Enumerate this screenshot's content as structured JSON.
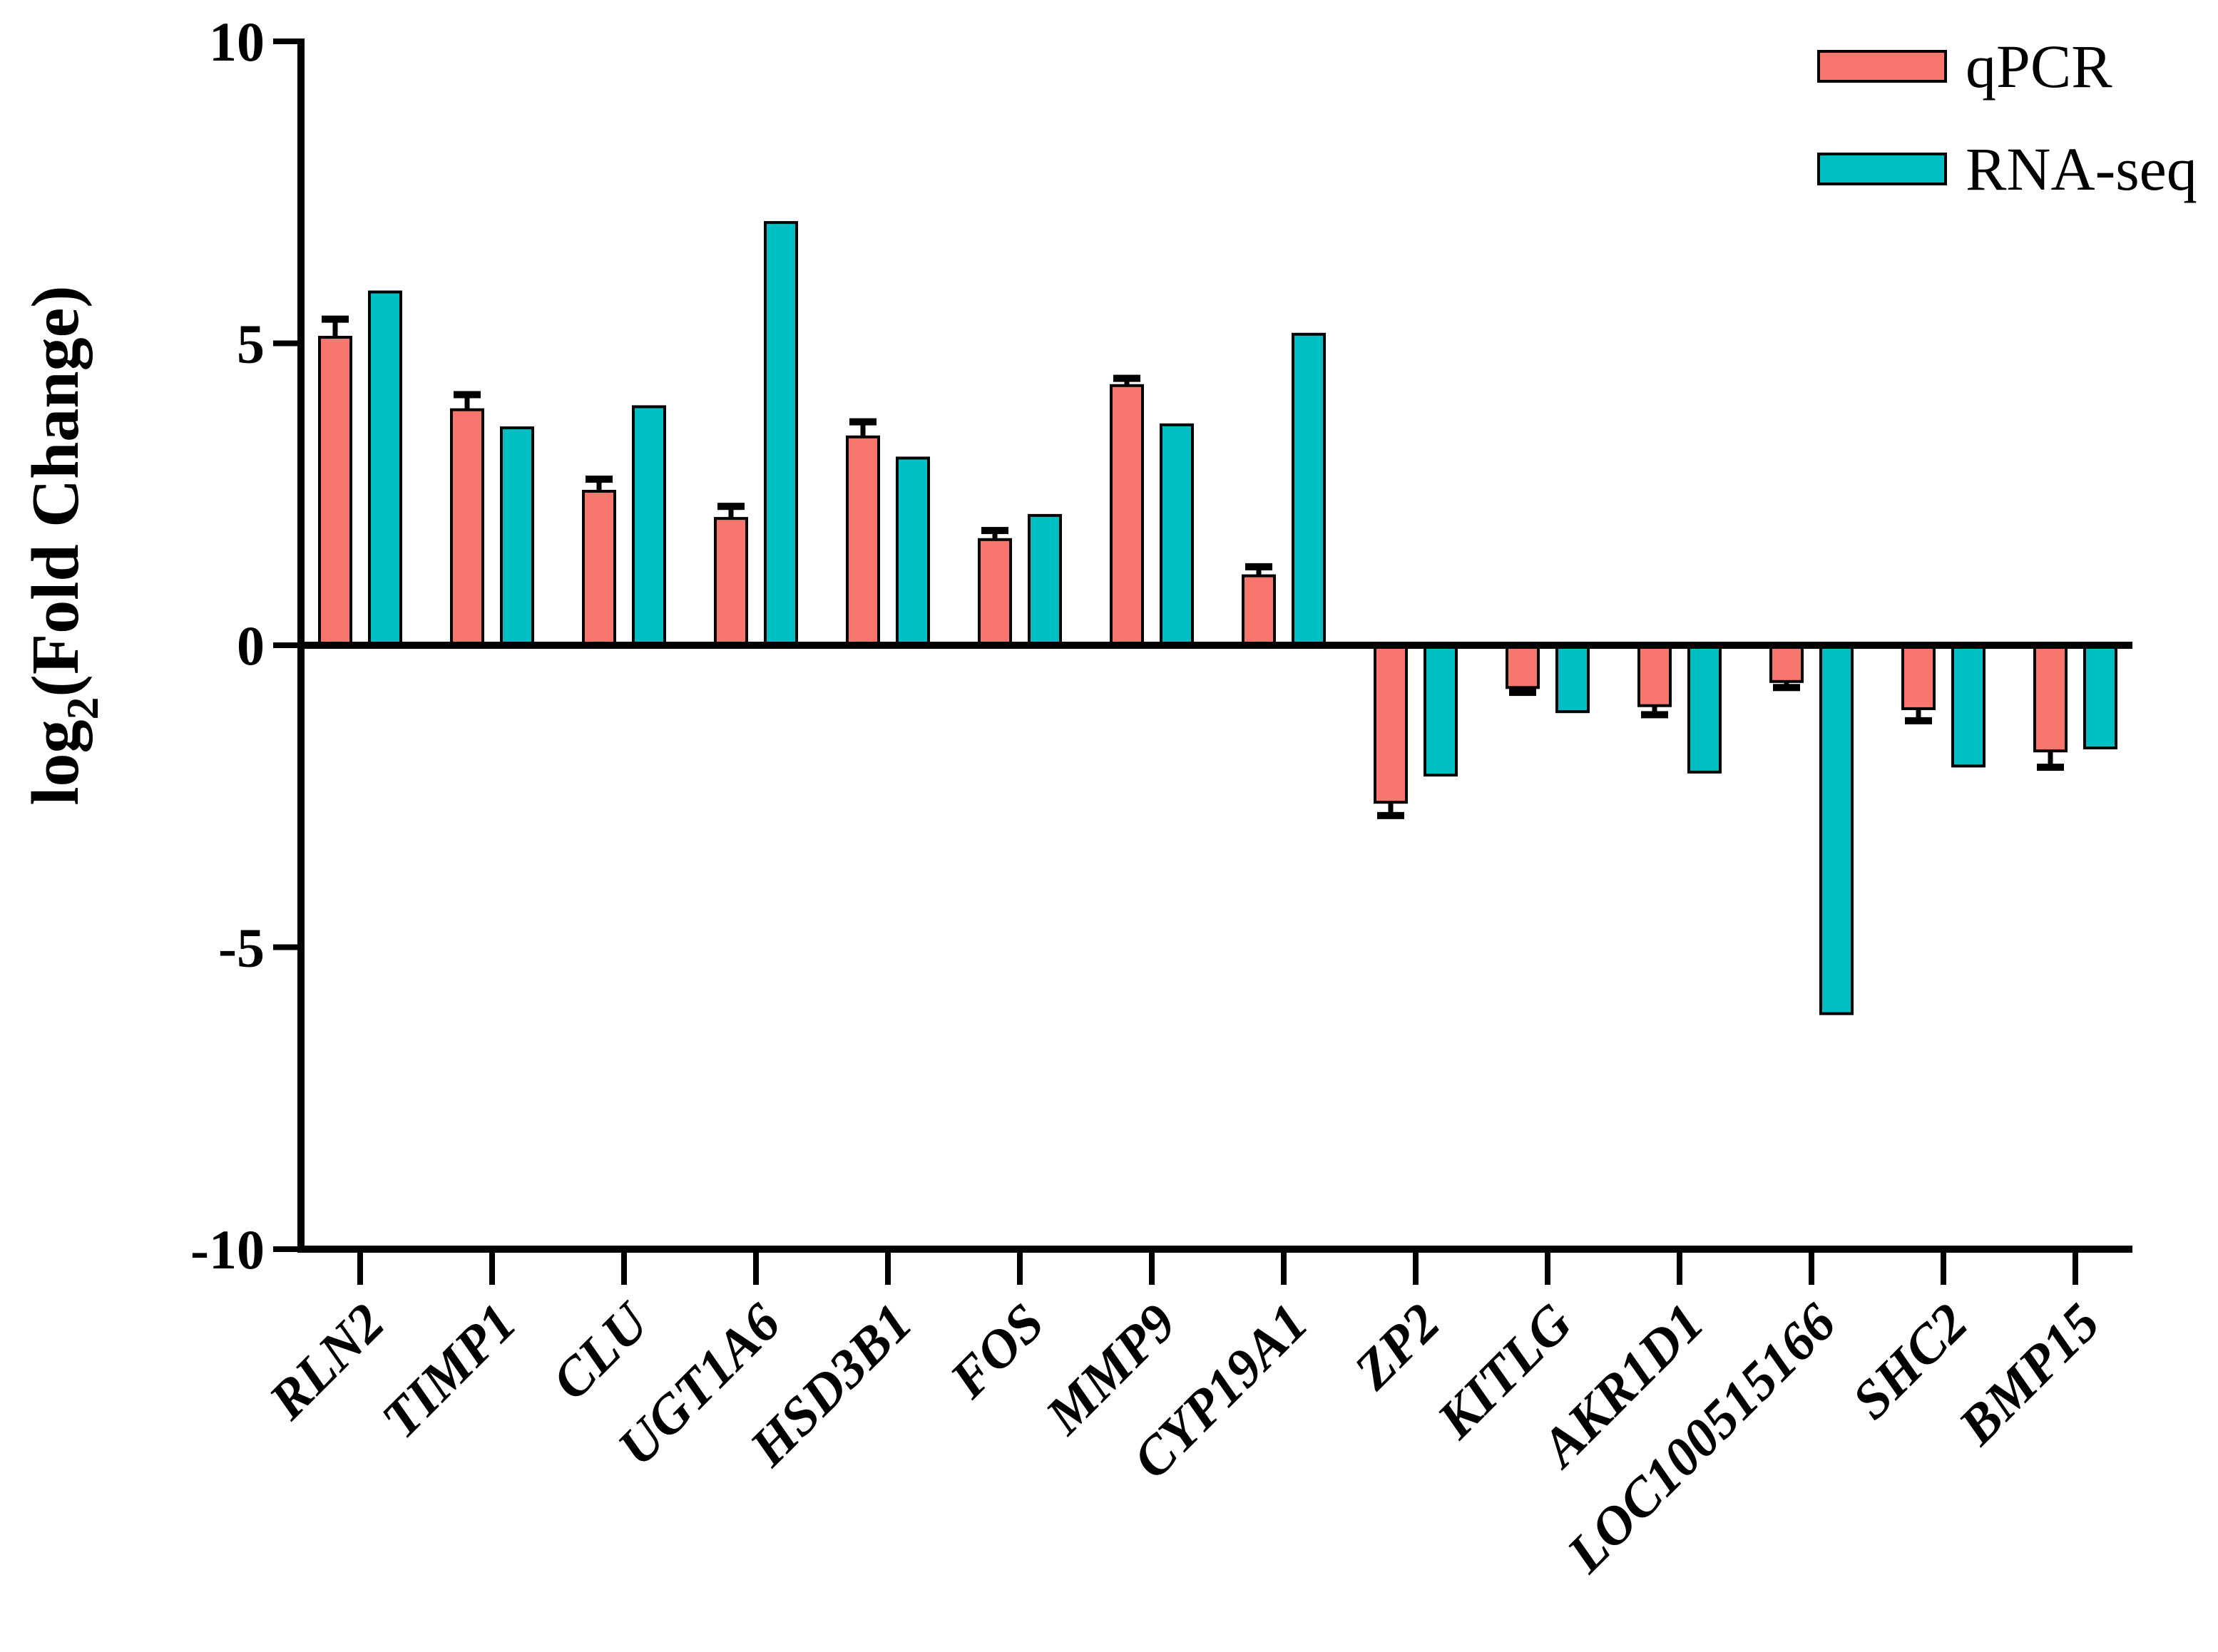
{
  "figure": {
    "kind": "grouped bar chart with error bars",
    "background": "#ffffff"
  },
  "legend": {
    "items": [
      {
        "label": "qPCR",
        "color": "#F8766D"
      },
      {
        "label": "RNA-seq",
        "color": "#00BFC4"
      }
    ]
  },
  "y_axis": {
    "title_pre": "log",
    "title_sub": "2",
    "title_post": "(Fold Change)",
    "tick_labels": [
      "10",
      "5",
      "0",
      "-5",
      "-10"
    ],
    "tick_values": [
      10,
      5,
      0,
      -5,
      -10
    ],
    "min": -10,
    "max": 10
  },
  "chart_data": {
    "type": "bar",
    "title": "",
    "xlabel": "",
    "ylabel": "log2(Fold Change)",
    "ylim": [
      -10,
      10
    ],
    "yticks": [
      10,
      5,
      0,
      -5,
      -10
    ],
    "grid": false,
    "legend_position": "top-right",
    "bar_outline_color": "#000000",
    "error_bar_color": "#000000",
    "error_bars_on": "qPCR series only, single-sided away from zero",
    "categories": [
      "RLN2",
      "TIMP1",
      "CLU",
      "UGT1A6",
      "HSD3B1",
      "FOS",
      "MMP9",
      "CYP19A1",
      "ZP2",
      "KITLG",
      "AKR1D1",
      "LOC100515166",
      "SHC2",
      "BMP15"
    ],
    "series": [
      {
        "name": "qPCR",
        "color": "#F8766D",
        "values": [
          5.1,
          3.9,
          2.55,
          2.1,
          3.45,
          1.75,
          4.3,
          1.15,
          -2.6,
          -0.7,
          -1.0,
          -0.6,
          -1.05,
          -1.75
        ],
        "errors": [
          0.3,
          0.25,
          0.2,
          0.2,
          0.25,
          0.15,
          0.12,
          0.15,
          0.22,
          0.08,
          0.15,
          0.1,
          0.2,
          0.27
        ]
      },
      {
        "name": "RNA-seq",
        "color": "#00BFC4",
        "values": [
          5.85,
          3.6,
          3.95,
          7.0,
          3.1,
          2.15,
          3.65,
          5.15,
          -2.15,
          -1.1,
          -2.1,
          -6.1,
          -2.0,
          -1.7
        ],
        "errors": null
      }
    ]
  }
}
